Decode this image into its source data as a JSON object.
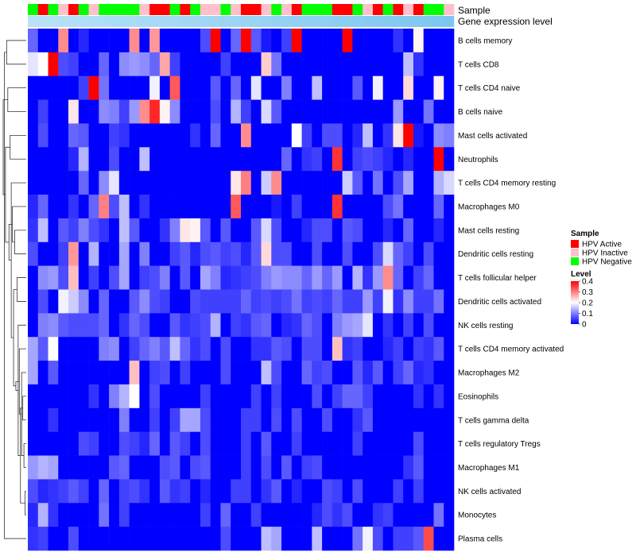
{
  "chart_data": {
    "type": "heatmap",
    "annotation_labels": {
      "sample": "Sample",
      "expression": "Gene expression level"
    },
    "sample_colors": {
      "Active": "#ff0000",
      "Inactive": "#ffc0cb",
      "Negative": "#00ff00"
    },
    "sample_annotation": [
      "Negative",
      "Active",
      "Negative",
      "Inactive",
      "Active",
      "Negative",
      "Inactive",
      "Negative",
      "Negative",
      "Negative",
      "Negative",
      "Inactive",
      "Active",
      "Active",
      "Negative",
      "Active",
      "Negative",
      "Inactive",
      "Inactive",
      "Negative",
      "Inactive",
      "Active",
      "Active",
      "Inactive",
      "Negative",
      "Inactive",
      "Active",
      "Negative",
      "Negative",
      "Negative",
      "Active",
      "Active",
      "Negative",
      "Inactive",
      "Active",
      "Negative",
      "Active",
      "Inactive",
      "Active",
      "Negative",
      "Negative",
      "Inactive"
    ],
    "expression_gradient": [
      "#b8e2f8",
      "#7cc7f0"
    ],
    "rows": [
      "B cells memory",
      "T cells CD8",
      "T cells CD4 naive",
      "B cells naive",
      "Mast cells activated",
      "Neutrophils",
      "T cells CD4 memory resting",
      "Macrophages M0",
      "Mast cells resting",
      "Dendritic cells resting",
      "T cells follicular helper",
      "Dendritic cells activated",
      "NK cells resting",
      "T cells CD4 memory activated",
      "Macrophages M2",
      "Eosinophils",
      "T cells gamma delta",
      "T cells regulatory  Tregs",
      "Macrophages M1",
      "NK cells activated",
      "Monocytes",
      "Plasma cells"
    ],
    "color_scale": {
      "min": 0,
      "max": 0.4,
      "low": "#0000ff",
      "mid": "#ffffff",
      "midpoint": 0.2,
      "high": "#ff0000"
    },
    "values": [
      [
        0.08,
        0,
        0,
        0.29,
        0,
        0.03,
        0,
        0,
        0,
        0,
        0.29,
        0,
        0.28,
        0,
        0,
        0,
        0,
        0.06,
        0.4,
        0,
        0.08,
        0.4,
        0.07,
        0.02,
        0,
        0.05,
        0.4,
        0,
        0,
        0,
        0,
        0.4,
        0,
        0,
        0,
        0,
        0.04,
        0,
        0.21,
        0,
        0,
        0
      ],
      [
        0.18,
        0.2,
        0.4,
        0.06,
        0.05,
        0,
        0,
        0.08,
        0,
        0.11,
        0.12,
        0.11,
        0.08,
        0.27,
        0.05,
        0,
        0,
        0,
        0,
        0.05,
        0,
        0,
        0,
        0.24,
        0.09,
        0,
        0,
        0,
        0,
        0,
        0,
        0,
        0,
        0,
        0,
        0,
        0,
        0.15,
        0.04,
        0,
        0,
        0
      ],
      [
        0,
        0,
        0,
        0,
        0,
        0.05,
        0.4,
        0.09,
        0,
        0,
        0,
        0,
        0.19,
        0,
        0.33,
        0,
        0,
        0,
        0.07,
        0,
        0.08,
        0,
        0.18,
        0,
        0,
        0.1,
        0,
        0,
        0.15,
        0,
        0,
        0,
        0.07,
        0,
        0.19,
        0,
        0,
        0.23,
        0,
        0,
        0.21,
        0
      ],
      [
        0,
        0.05,
        0,
        0,
        0.22,
        0,
        0,
        0.11,
        0.1,
        0.05,
        0.12,
        0.29,
        0.37,
        0.21,
        0.11,
        0,
        0,
        0,
        0.06,
        0,
        0.14,
        0.05,
        0,
        0.17,
        0.07,
        0,
        0,
        0,
        0,
        0,
        0,
        0,
        0,
        0,
        0,
        0,
        0.12,
        0,
        0,
        0.09,
        0,
        0
      ],
      [
        0,
        0.06,
        0,
        0,
        0.08,
        0.07,
        0,
        0,
        0.05,
        0.04,
        0,
        0,
        0,
        0,
        0,
        0,
        0.04,
        0,
        0.08,
        0,
        0,
        0.29,
        0,
        0,
        0,
        0,
        0.2,
        0.05,
        0,
        0.06,
        0.06,
        0,
        0.03,
        0.15,
        0,
        0.04,
        0.22,
        0.4,
        0.02,
        0,
        0.11,
        0.1
      ],
      [
        0,
        0,
        0,
        0,
        0.03,
        0.14,
        0,
        0,
        0.06,
        0,
        0,
        0.15,
        0,
        0,
        0,
        0,
        0,
        0,
        0,
        0,
        0,
        0,
        0,
        0,
        0,
        0.08,
        0,
        0.04,
        0.05,
        0,
        0.36,
        0,
        0.05,
        0.06,
        0.05,
        0.03,
        0,
        0.03,
        0,
        0,
        0.4,
        0
      ],
      [
        0,
        0,
        0,
        0,
        0,
        0.08,
        0,
        0.11,
        0.18,
        0,
        0,
        0,
        0,
        0,
        0,
        0,
        0,
        0,
        0,
        0,
        0.22,
        0.3,
        0,
        0.16,
        0.29,
        0,
        0,
        0,
        0,
        0,
        0,
        0.16,
        0.07,
        0,
        0.09,
        0,
        0.06,
        0.13,
        0,
        0,
        0.14,
        0.17
      ],
      [
        0.03,
        0.08,
        0,
        0,
        0.04,
        0,
        0.08,
        0.3,
        0.06,
        0.15,
        0,
        0.04,
        0,
        0,
        0,
        0,
        0,
        0,
        0,
        0,
        0.33,
        0,
        0,
        0,
        0.02,
        0,
        0.05,
        0,
        0,
        0,
        0.36,
        0,
        0,
        0,
        0,
        0.06,
        0.09,
        0,
        0,
        0,
        0.08,
        0
      ],
      [
        0.04,
        0.15,
        0,
        0.07,
        0.05,
        0.1,
        0.06,
        0.04,
        0,
        0.15,
        0.07,
        0,
        0,
        0.04,
        0.1,
        0.22,
        0.21,
        0.07,
        0,
        0.07,
        0,
        0,
        0.07,
        0.17,
        0.06,
        0,
        0,
        0.03,
        0.06,
        0.06,
        0,
        0.07,
        0.06,
        0,
        0,
        0.03,
        0,
        0.08,
        0,
        0,
        0.03,
        0
      ],
      [
        0.06,
        0,
        0,
        0.05,
        0.28,
        0,
        0.14,
        0,
        0,
        0.13,
        0,
        0.1,
        0,
        0,
        0.05,
        0.07,
        0.03,
        0.06,
        0.07,
        0.05,
        0.06,
        0.03,
        0.07,
        0.23,
        0.06,
        0.06,
        0,
        0,
        0.06,
        0,
        0,
        0.06,
        0,
        0,
        0.06,
        0.17,
        0.08,
        0.05,
        0,
        0.06,
        0,
        0
      ],
      [
        0,
        0.11,
        0.12,
        0.06,
        0.25,
        0,
        0.05,
        0,
        0.06,
        0.13,
        0,
        0.05,
        0.06,
        0.1,
        0,
        0.07,
        0,
        0.13,
        0.1,
        0.03,
        0.04,
        0.05,
        0.06,
        0.1,
        0.12,
        0.11,
        0.11,
        0.08,
        0.12,
        0.08,
        0.12,
        0,
        0.14,
        0.04,
        0.12,
        0.29,
        0.08,
        0,
        0.05,
        0.08,
        0,
        0
      ],
      [
        0,
        0.06,
        0,
        0.19,
        0.16,
        0.11,
        0,
        0.08,
        0,
        0,
        0.07,
        0.11,
        0.06,
        0.05,
        0,
        0,
        0.06,
        0.05,
        0.05,
        0.05,
        0.05,
        0.08,
        0.05,
        0.06,
        0.05,
        0.06,
        0.09,
        0.05,
        0.06,
        0.05,
        0.08,
        0.05,
        0.05,
        0.12,
        0.05,
        0.19,
        0.04,
        0.11,
        0.05,
        0.05,
        0.09,
        0
      ],
      [
        0,
        0.1,
        0.11,
        0.07,
        0.06,
        0.06,
        0.06,
        0.08,
        0,
        0.04,
        0.08,
        0.06,
        0,
        0,
        0.07,
        0.04,
        0.05,
        0.06,
        0.14,
        0,
        0.05,
        0.04,
        0.07,
        0.08,
        0,
        0.03,
        0.04,
        0.08,
        0.06,
        0,
        0.1,
        0.12,
        0.13,
        0.18,
        0,
        0.04,
        0,
        0.05,
        0,
        0.06,
        0,
        0
      ],
      [
        0.13,
        0.07,
        0.2,
        0,
        0,
        0,
        0,
        0.1,
        0.11,
        0,
        0.05,
        0.08,
        0.1,
        0.07,
        0.15,
        0.08,
        0.04,
        0.06,
        0,
        0.06,
        0,
        0,
        0.04,
        0.04,
        0.07,
        0.06,
        0,
        0.06,
        0.06,
        0,
        0.25,
        0.04,
        0.05,
        0,
        0,
        0.03,
        0.05,
        0,
        0.05,
        0.04,
        0.07,
        0
      ],
      [
        0.13,
        0,
        0.07,
        0,
        0,
        0,
        0,
        0,
        0,
        0,
        0.25,
        0,
        0.05,
        0.06,
        0,
        0.05,
        0,
        0,
        0,
        0.06,
        0,
        0,
        0,
        0.15,
        0.06,
        0,
        0,
        0.08,
        0.05,
        0.06,
        0,
        0,
        0.07,
        0.03,
        0.07,
        0,
        0.05,
        0.08,
        0.03,
        0.04,
        0,
        0
      ],
      [
        0,
        0,
        0,
        0,
        0,
        0,
        0.04,
        0,
        0.1,
        0.14,
        0.2,
        0,
        0.06,
        0,
        0,
        0,
        0,
        0.05,
        0,
        0,
        0,
        0,
        0.05,
        0,
        0.05,
        0,
        0,
        0,
        0.06,
        0,
        0.05,
        0.08,
        0.08,
        0.05,
        0,
        0,
        0,
        0,
        0.04,
        0,
        0.04,
        0
      ],
      [
        0,
        0,
        0.04,
        0,
        0,
        0,
        0,
        0,
        0,
        0.1,
        0,
        0,
        0.05,
        0,
        0.05,
        0.13,
        0.13,
        0.06,
        0,
        0,
        0,
        0.05,
        0.05,
        0,
        0.06,
        0,
        0.06,
        0,
        0,
        0.06,
        0,
        0,
        0.04,
        0.07,
        0,
        0,
        0,
        0,
        0,
        0,
        0,
        0
      ],
      [
        0,
        0,
        0,
        0,
        0,
        0.06,
        0.05,
        0,
        0,
        0.06,
        0.05,
        0.03,
        0.08,
        0,
        0.07,
        0.05,
        0,
        0.06,
        0,
        0,
        0,
        0.05,
        0,
        0.07,
        0,
        0,
        0.05,
        0,
        0,
        0,
        0,
        0,
        0.05,
        0,
        0,
        0,
        0,
        0,
        0.06,
        0,
        0,
        0
      ],
      [
        0.12,
        0.14,
        0.13,
        0,
        0,
        0,
        0,
        0,
        0.07,
        0.08,
        0,
        0,
        0,
        0.06,
        0.07,
        0,
        0.06,
        0.07,
        0,
        0,
        0,
        0.05,
        0,
        0.06,
        0,
        0.07,
        0,
        0.05,
        0.06,
        0,
        0,
        0,
        0,
        0,
        0,
        0,
        0,
        0.04,
        0.07,
        0,
        0,
        0
      ],
      [
        0.06,
        0.03,
        0.04,
        0.05,
        0.07,
        0.05,
        0,
        0.08,
        0,
        0.05,
        0.06,
        0.04,
        0,
        0.07,
        0.04,
        0.05,
        0,
        0.03,
        0,
        0,
        0.05,
        0.05,
        0,
        0.04,
        0.07,
        0,
        0.03,
        0,
        0,
        0.06,
        0.05,
        0,
        0.06,
        0,
        0,
        0,
        0.05,
        0,
        0.05,
        0,
        0,
        0
      ],
      [
        0.03,
        0.14,
        0.04,
        0,
        0,
        0,
        0,
        0.09,
        0,
        0.05,
        0,
        0,
        0,
        0,
        0,
        0,
        0,
        0.05,
        0,
        0.08,
        0,
        0,
        0.05,
        0,
        0,
        0,
        0,
        0,
        0.03,
        0.06,
        0.04,
        0.06,
        0,
        0,
        0.04,
        0.05,
        0,
        0,
        0,
        0,
        0.09,
        0
      ],
      [
        0.04,
        0.05,
        0,
        0,
        0.06,
        0,
        0,
        0,
        0,
        0,
        0,
        0,
        0,
        0,
        0,
        0,
        0,
        0,
        0,
        0.06,
        0,
        0,
        0,
        0.15,
        0.13,
        0,
        0,
        0,
        0.15,
        0,
        0,
        0,
        0.09,
        0.19,
        0.06,
        0,
        0.05,
        0.05,
        0.07,
        0.34,
        0,
        0
      ]
    ],
    "legend": {
      "sample_title": "Sample",
      "sample_items": [
        {
          "label": "HPV Active",
          "color": "#ff0000"
        },
        {
          "label": "HPV Inactive",
          "color": "#ffc0cb"
        },
        {
          "label": "HPV Negative",
          "color": "#00ff00"
        }
      ],
      "level_title": "Level",
      "level_ticks": [
        0.4,
        0.3,
        0.2,
        0.1,
        0
      ],
      "level_tick_labels": [
        "0.4",
        "0.3",
        "0.2",
        "0.1",
        "0"
      ]
    },
    "dendrogram": {
      "merges": [
        [
          19,
          20
        ],
        [
          17,
          18
        ],
        [
          15,
          16
        ],
        [
          14,
          "m2"
        ],
        [
          "m1",
          "m3"
        ],
        [
          13,
          "m4"
        ],
        [
          12,
          "m5"
        ],
        [
          10,
          11
        ],
        [
          "m7",
          "m6"
        ],
        [
          8,
          9
        ],
        [
          "m9",
          "m8"
        ],
        [
          7,
          "m10"
        ],
        [
          6,
          "m11"
        ],
        [
          4,
          5
        ],
        [
          "m13",
          "m12"
        ],
        [
          2,
          3
        ],
        [
          0,
          1
        ],
        [
          "m15",
          "m14"
        ],
        [
          21,
          "m17"
        ],
        [
          "m16",
          "m18"
        ]
      ]
    }
  }
}
